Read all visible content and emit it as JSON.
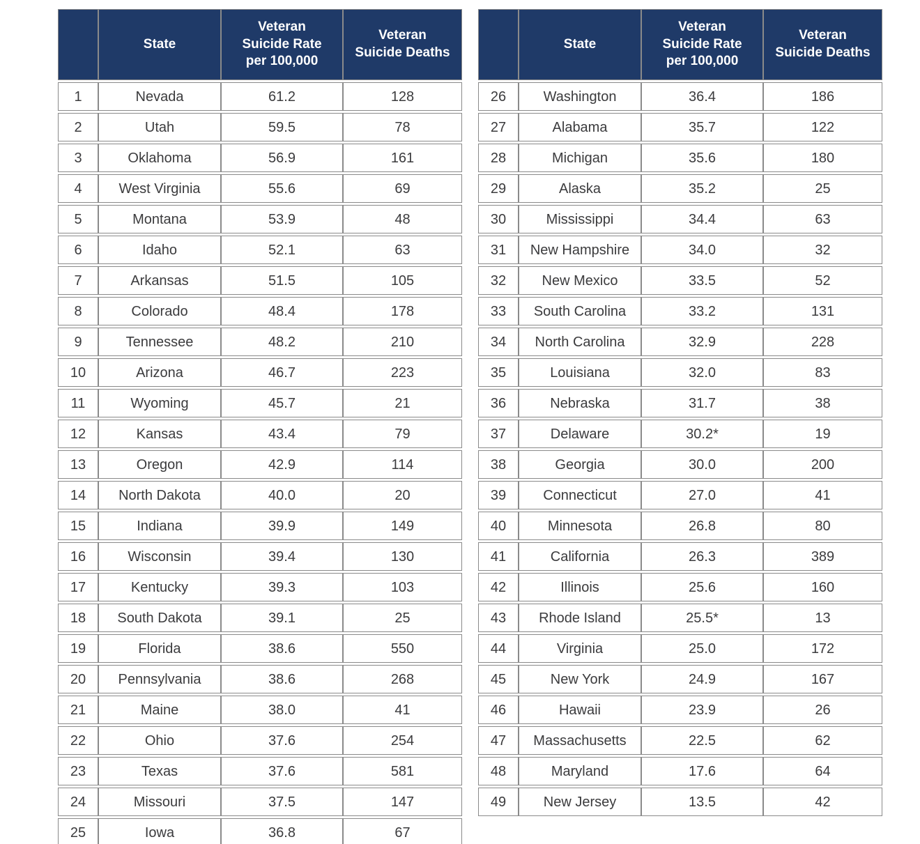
{
  "colors": {
    "header_bg": "#1f3a68",
    "header_text": "#ffffff",
    "body_text": "#3b3b3d",
    "border": "#8a8a8a",
    "row_bg": "#ffffff"
  },
  "left_table": {
    "headers": [
      "",
      "State",
      "Veteran\nSuicide Rate\nper 100,000",
      "Veteran\nSuicide Deaths"
    ],
    "rows": [
      [
        "1",
        "Nevada",
        "61.2",
        "128"
      ],
      [
        "2",
        "Utah",
        "59.5",
        "78"
      ],
      [
        "3",
        "Oklahoma",
        "56.9",
        "161"
      ],
      [
        "4",
        "West Virginia",
        "55.6",
        "69"
      ],
      [
        "5",
        "Montana",
        "53.9",
        "48"
      ],
      [
        "6",
        "Idaho",
        "52.1",
        "63"
      ],
      [
        "7",
        "Arkansas",
        "51.5",
        "105"
      ],
      [
        "8",
        "Colorado",
        "48.4",
        "178"
      ],
      [
        "9",
        "Tennessee",
        "48.2",
        "210"
      ],
      [
        "10",
        "Arizona",
        "46.7",
        "223"
      ],
      [
        "11",
        "Wyoming",
        "45.7",
        "21"
      ],
      [
        "12",
        "Kansas",
        "43.4",
        "79"
      ],
      [
        "13",
        "Oregon",
        "42.9",
        "114"
      ],
      [
        "14",
        "North Dakota",
        "40.0",
        "20"
      ],
      [
        "15",
        "Indiana",
        "39.9",
        "149"
      ],
      [
        "16",
        "Wisconsin",
        "39.4",
        "130"
      ],
      [
        "17",
        "Kentucky",
        "39.3",
        "103"
      ],
      [
        "18",
        "South Dakota",
        "39.1",
        "25"
      ],
      [
        "19",
        "Florida",
        "38.6",
        "550"
      ],
      [
        "20",
        "Pennsylvania",
        "38.6",
        "268"
      ],
      [
        "21",
        "Maine",
        "38.0",
        "41"
      ],
      [
        "22",
        "Ohio",
        "37.6",
        "254"
      ],
      [
        "23",
        "Texas",
        "37.6",
        "581"
      ],
      [
        "24",
        "Missouri",
        "37.5",
        "147"
      ],
      [
        "25",
        "Iowa",
        "36.8",
        "67"
      ]
    ]
  },
  "right_table": {
    "headers": [
      "",
      "State",
      "Veteran\nSuicide Rate\nper 100,000",
      "Veteran\nSuicide Deaths"
    ],
    "rows": [
      [
        "26",
        "Washington",
        "36.4",
        "186"
      ],
      [
        "27",
        "Alabama",
        "35.7",
        "122"
      ],
      [
        "28",
        "Michigan",
        "35.6",
        "180"
      ],
      [
        "29",
        "Alaska",
        "35.2",
        "25"
      ],
      [
        "30",
        "Mississippi",
        "34.4",
        "63"
      ],
      [
        "31",
        "New Hampshire",
        "34.0",
        "32"
      ],
      [
        "32",
        "New Mexico",
        "33.5",
        "52"
      ],
      [
        "33",
        "South Carolina",
        "33.2",
        "131"
      ],
      [
        "34",
        "North Carolina",
        "32.9",
        "228"
      ],
      [
        "35",
        "Louisiana",
        "32.0",
        "83"
      ],
      [
        "36",
        "Nebraska",
        "31.7",
        "38"
      ],
      [
        "37",
        "Delaware",
        "30.2*",
        "19"
      ],
      [
        "38",
        "Georgia",
        "30.0",
        "200"
      ],
      [
        "39",
        "Connecticut",
        "27.0",
        "41"
      ],
      [
        "40",
        "Minnesota",
        "26.8",
        "80"
      ],
      [
        "41",
        "California",
        "26.3",
        "389"
      ],
      [
        "42",
        "Illinois",
        "25.6",
        "160"
      ],
      [
        "43",
        "Rhode Island",
        "25.5*",
        "13"
      ],
      [
        "44",
        "Virginia",
        "25.0",
        "172"
      ],
      [
        "45",
        "New York",
        "24.9",
        "167"
      ],
      [
        "46",
        "Hawaii",
        "23.9",
        "26"
      ],
      [
        "47",
        "Massachusetts",
        "22.5",
        "62"
      ],
      [
        "48",
        "Maryland",
        "17.6",
        "64"
      ],
      [
        "49",
        "New Jersey",
        "13.5",
        "42"
      ]
    ]
  }
}
